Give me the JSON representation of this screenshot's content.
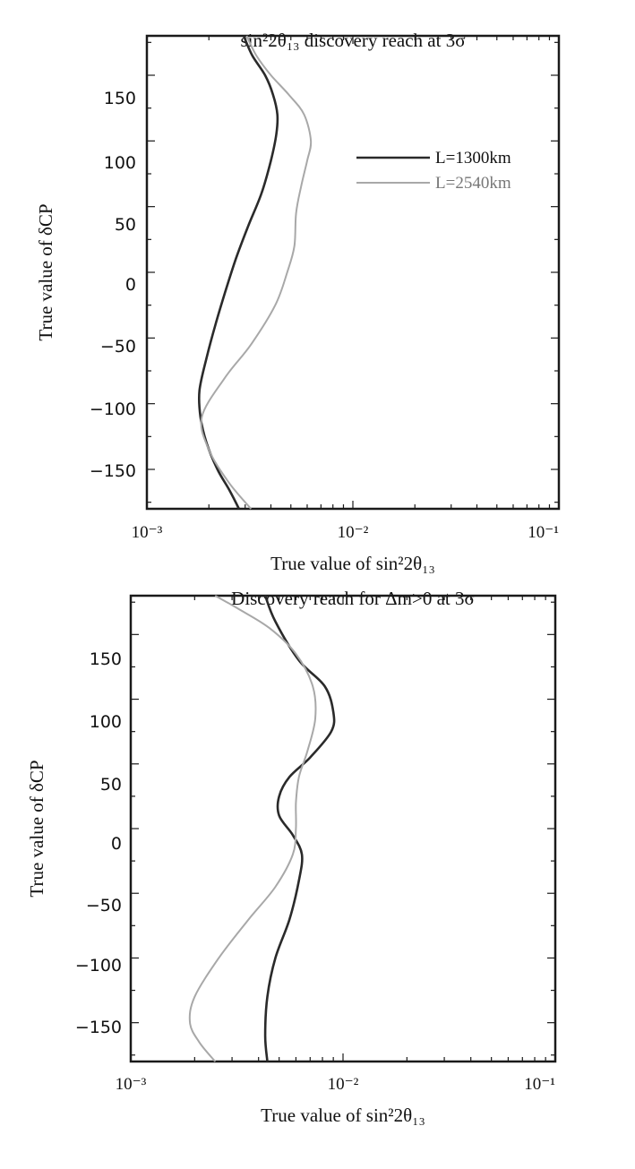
{
  "chart_data": [
    {
      "type": "line",
      "title": "sin²2θ₁₃ discovery reach at 3σ",
      "xlabel": "True value of sin²2θ₁₃",
      "ylabel": "True value of δCP",
      "xscale": "log",
      "xlim": [
        0.001,
        0.1
      ],
      "ylim": [
        -180,
        180
      ],
      "xticks": [
        "10⁻³",
        "10⁻²",
        "10⁻¹"
      ],
      "yticks": [
        "150",
        "100",
        "50",
        "0",
        "−50",
        "−100",
        "−150"
      ],
      "legend_position": "top-right",
      "series": [
        {
          "name": "L=1300km",
          "color": "#2a2a2a",
          "points": [
            [
              0.00295,
              180
            ],
            [
              0.00325,
              165
            ],
            [
              0.00375,
              150
            ],
            [
              0.0041,
              135
            ],
            [
              0.0043,
              120
            ],
            [
              0.00425,
              105
            ],
            [
              0.004,
              85
            ],
            [
              0.0036,
              60
            ],
            [
              0.0031,
              35
            ],
            [
              0.0027,
              10
            ],
            [
              0.0024,
              -15
            ],
            [
              0.00215,
              -40
            ],
            [
              0.00195,
              -65
            ],
            [
              0.0018,
              -90
            ],
            [
              0.00182,
              -110
            ],
            [
              0.00195,
              -130
            ],
            [
              0.0022,
              -150
            ],
            [
              0.0025,
              -165
            ],
            [
              0.0028,
              -180
            ]
          ]
        },
        {
          "name": "L=2540km",
          "color": "#a8a8a8",
          "points": [
            [
              0.00305,
              180
            ],
            [
              0.0034,
              165
            ],
            [
              0.004,
              150
            ],
            [
              0.0049,
              135
            ],
            [
              0.0058,
              120
            ],
            [
              0.00625,
              100
            ],
            [
              0.006,
              85
            ],
            [
              0.0056,
              65
            ],
            [
              0.0053,
              45
            ],
            [
              0.0052,
              20
            ],
            [
              0.0048,
              0
            ],
            [
              0.0042,
              -25
            ],
            [
              0.0032,
              -55
            ],
            [
              0.0024,
              -80
            ],
            [
              0.00185,
              -110
            ],
            [
              0.002,
              -135
            ],
            [
              0.0025,
              -160
            ],
            [
              0.0032,
              -180
            ]
          ]
        }
      ]
    },
    {
      "type": "line",
      "title": "Discovery reach for Δm>0 at 3σ",
      "xlabel": "True value of sin²2θ₁₃",
      "ylabel": "True value of δCP",
      "xscale": "log",
      "xlim": [
        0.001,
        0.1
      ],
      "ylim": [
        -180,
        180
      ],
      "xticks": [
        "10⁻³",
        "10⁻²",
        "10⁻¹"
      ],
      "yticks": [
        "150",
        "100",
        "50",
        "0",
        "−50",
        "−100",
        "−150"
      ],
      "series": [
        {
          "name": "",
          "color": "#2a2a2a",
          "points": [
            [
              0.0043,
              180
            ],
            [
              0.0048,
              160
            ],
            [
              0.0062,
              130
            ],
            [
              0.0082,
              110
            ],
            [
              0.009,
              90
            ],
            [
              0.0088,
              75
            ],
            [
              0.007,
              55
            ],
            [
              0.0056,
              40
            ],
            [
              0.005,
              25
            ],
            [
              0.005,
              10
            ],
            [
              0.0058,
              -5
            ],
            [
              0.0064,
              -20
            ],
            [
              0.0062,
              -40
            ],
            [
              0.0056,
              -70
            ],
            [
              0.0048,
              -100
            ],
            [
              0.0044,
              -130
            ],
            [
              0.0043,
              -160
            ],
            [
              0.0044,
              -180
            ]
          ]
        },
        {
          "name": "",
          "color": "#a8a8a8",
          "points": [
            [
              0.0025,
              180
            ],
            [
              0.0032,
              170
            ],
            [
              0.0045,
              155
            ],
            [
              0.006,
              135
            ],
            [
              0.0072,
              110
            ],
            [
              0.0074,
              85
            ],
            [
              0.0068,
              60
            ],
            [
              0.0062,
              40
            ],
            [
              0.006,
              20
            ],
            [
              0.006,
              0
            ],
            [
              0.0058,
              -20
            ],
            [
              0.0048,
              -45
            ],
            [
              0.0036,
              -70
            ],
            [
              0.0026,
              -100
            ],
            [
              0.002,
              -130
            ],
            [
              0.0019,
              -150
            ],
            [
              0.0021,
              -165
            ],
            [
              0.0025,
              -180
            ]
          ]
        }
      ]
    }
  ]
}
